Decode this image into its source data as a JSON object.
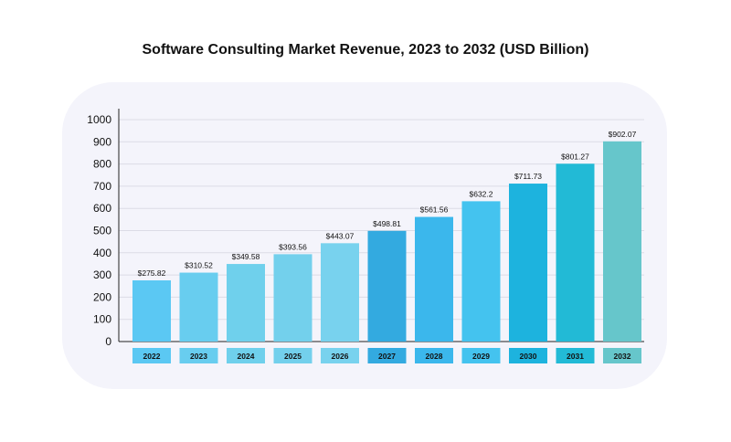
{
  "chart_data": {
    "type": "bar",
    "title": "Software Consulting Market Revenue, 2023 to 2032 (USD Billion)",
    "xlabel": "",
    "ylabel": "",
    "ylim": [
      0,
      1000
    ],
    "yticks": [
      0,
      100,
      200,
      300,
      400,
      500,
      600,
      700,
      800,
      900,
      1000
    ],
    "grid": true,
    "categories": [
      "2022",
      "2023",
      "2024",
      "2025",
      "2026",
      "2027",
      "2028",
      "2029",
      "2030",
      "2031",
      "2032"
    ],
    "values": [
      275.82,
      310.52,
      349.58,
      393.56,
      443.07,
      498.81,
      561.56,
      632.2,
      711.73,
      801.27,
      902.07
    ],
    "data_labels": [
      "$275.82",
      "$310.52",
      "$349.58",
      "$393.56",
      "$443.07",
      "$498.81",
      "$561.56",
      "$632.2",
      "$711.73",
      "$801.27",
      "$902.07"
    ],
    "colors": [
      "#5bc8f3",
      "#68cdef",
      "#6fd0ec",
      "#73d0ec",
      "#78d2ee",
      "#33aae0",
      "#3bb7ec",
      "#44c3ef",
      "#1db3de",
      "#22bad6",
      "#66c6cb"
    ]
  }
}
